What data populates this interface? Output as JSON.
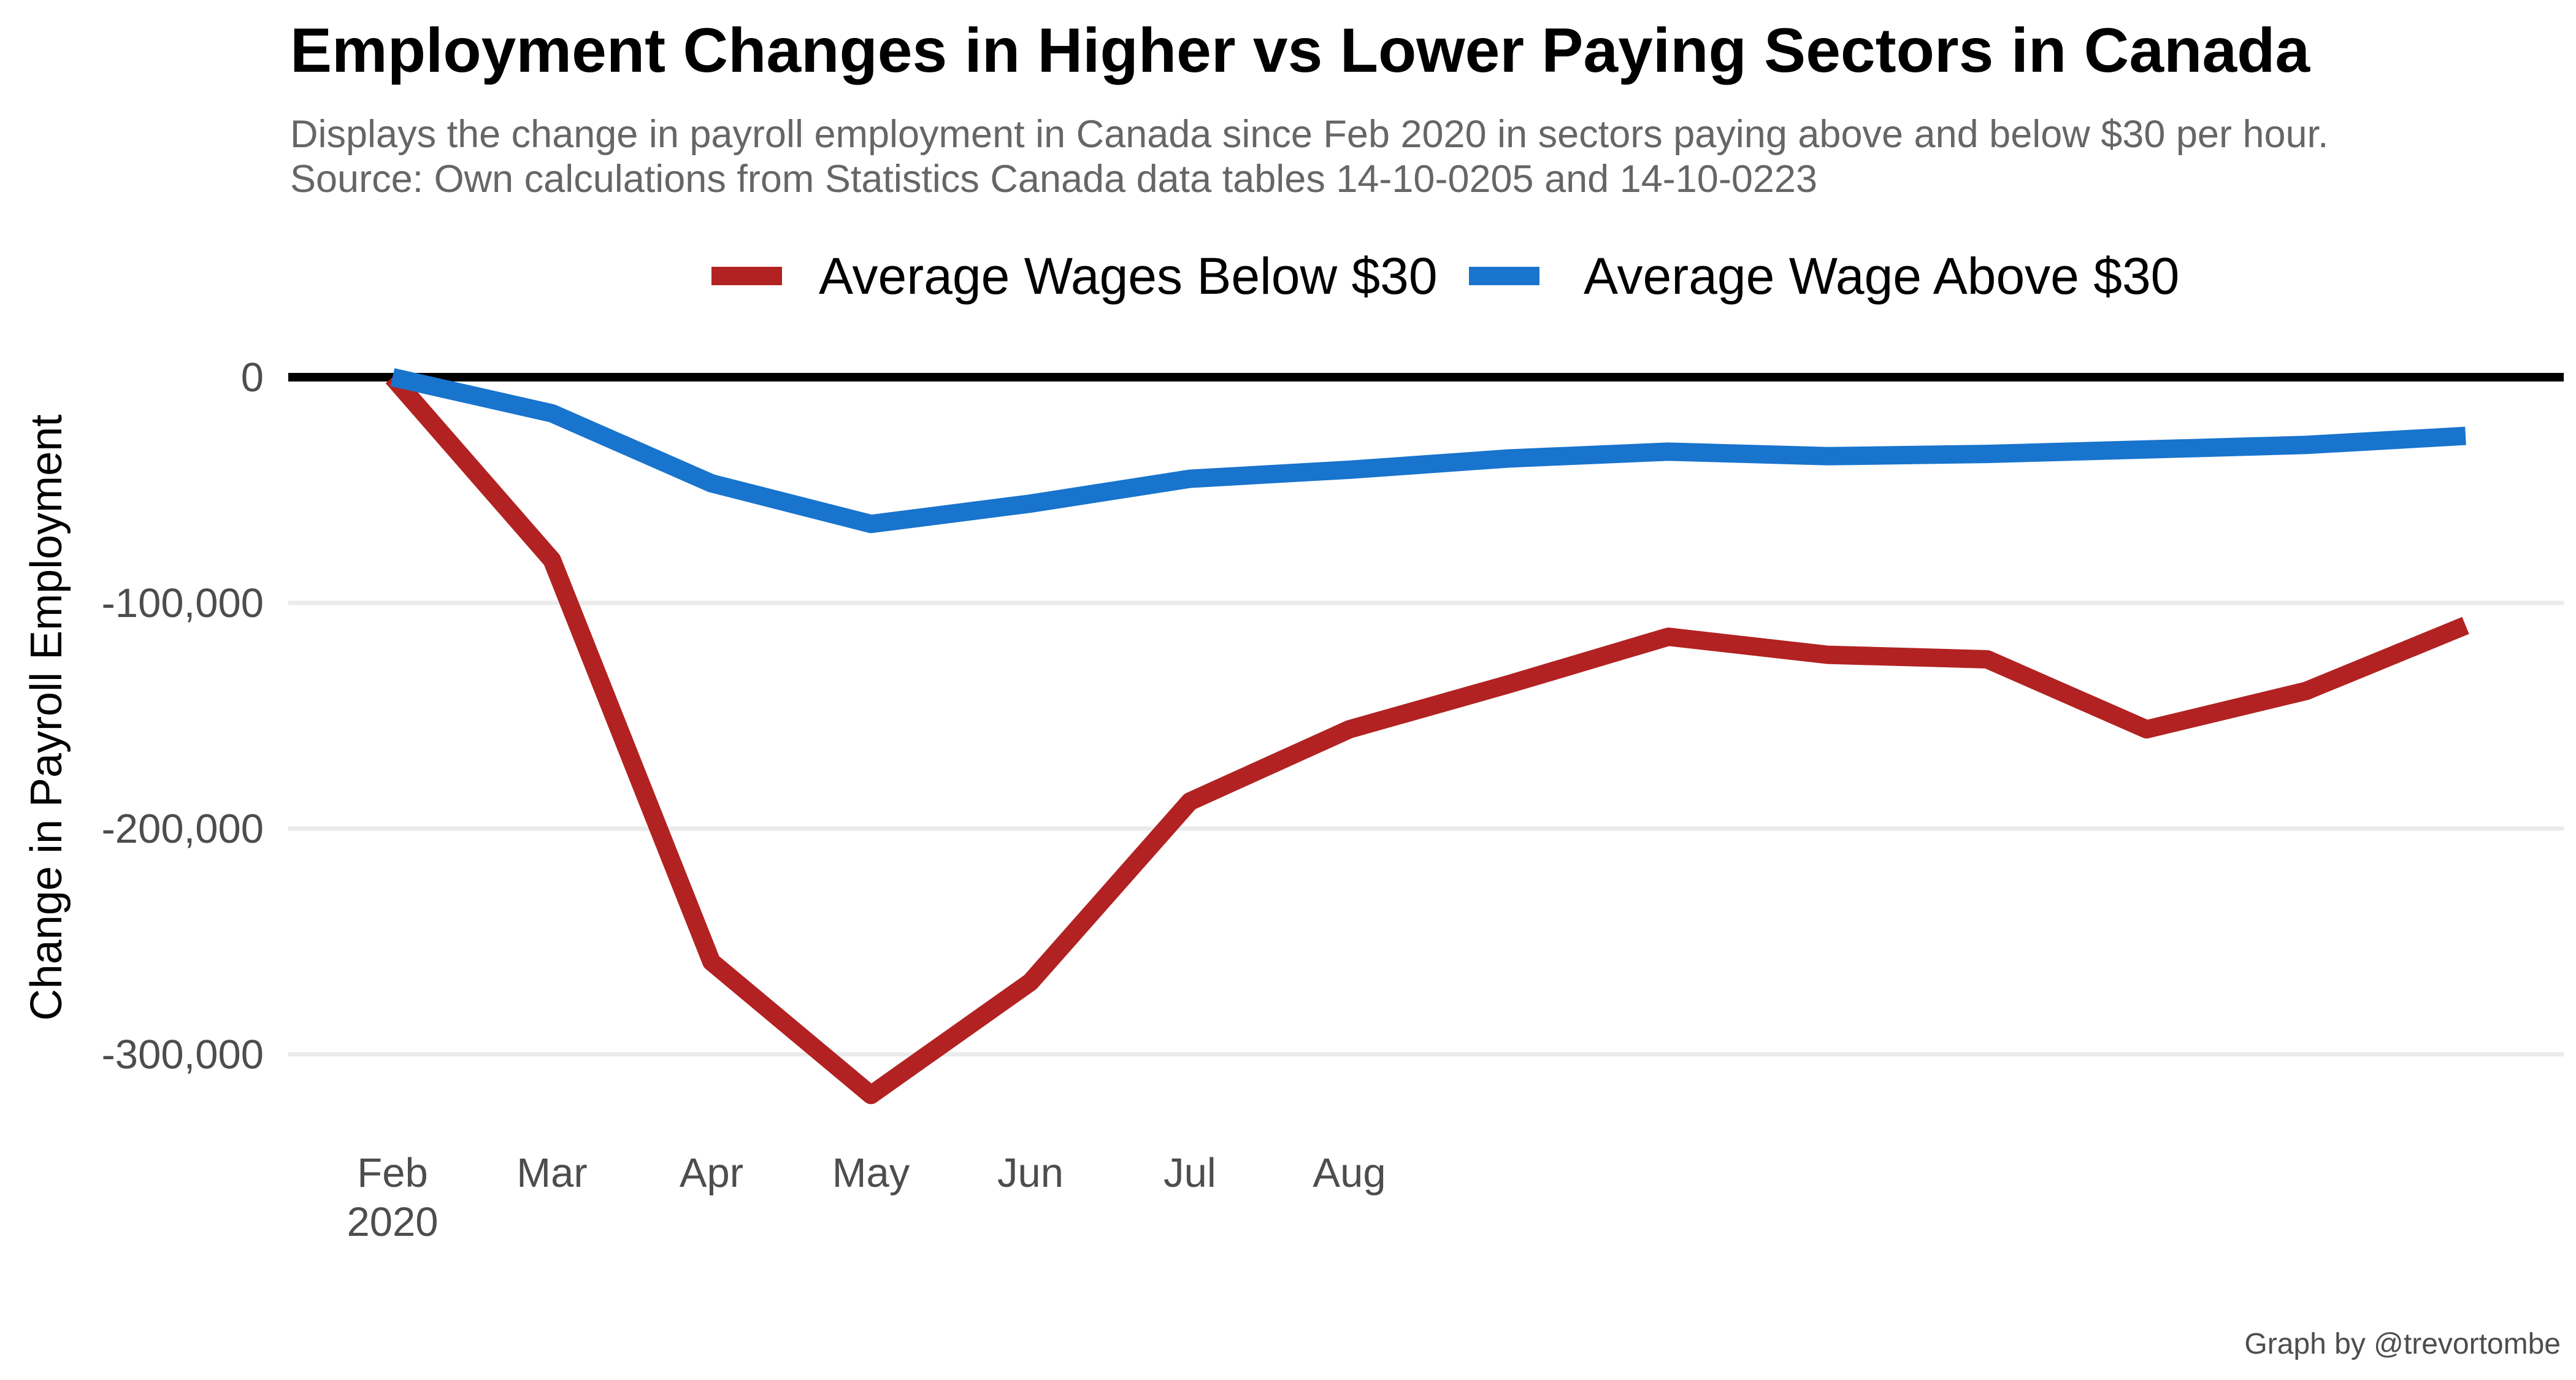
{
  "chart_data": {
    "type": "line",
    "title": "Employment Changes in Higher vs Lower Paying Sectors in Canada",
    "subtitle": [
      "Displays the change in payroll employment in Canada since Feb 2020 in sectors paying above and below $30 per hour.",
      "Source: Own calculations from Statistics Canada data tables 14-10-0205 and 14-10-0223"
    ],
    "caption": "Graph by @trevortombe",
    "xlabel": "",
    "ylabel": "Change in Payroll Employment",
    "x": [
      "2020-02",
      "2020-03",
      "2020-04",
      "2020-05",
      "2020-06",
      "2020-07",
      "2020-08",
      "2020-09",
      "2020-10",
      "2020-11",
      "2020-12",
      "2021-01",
      "2021-02",
      "2021-03"
    ],
    "x_ticks": [
      {
        "x": "2020-02",
        "label": [
          "Feb",
          "2020"
        ]
      },
      {
        "x": "2020-03",
        "label": [
          "Mar"
        ]
      },
      {
        "x": "2020-04",
        "label": [
          "Apr"
        ]
      },
      {
        "x": "2020-05",
        "label": [
          "May"
        ]
      },
      {
        "x": "2020-06",
        "label": [
          "Jun"
        ]
      },
      {
        "x": "2020-07",
        "label": [
          "Jul"
        ]
      },
      {
        "x": "2020-08",
        "label": [
          "Aug"
        ]
      }
    ],
    "y_ticks": [
      0,
      -100000,
      -200000,
      -300000
    ],
    "y_tick_labels": [
      "0",
      "-100,000",
      "-200,000",
      "-300,000"
    ],
    "ylim": [
      -340000,
      5000
    ],
    "grid": true,
    "legend_position": "top",
    "series": [
      {
        "name": "Average Wages Below $30",
        "color": "#B22222",
        "values": [
          0,
          -81000,
          -259000,
          -318000,
          -268000,
          -188000,
          -156000,
          -136000,
          -115000,
          -123000,
          -125000,
          -156000,
          -139000,
          -110000
        ]
      },
      {
        "name": "Average Wage Above $30",
        "color": "#1874CD",
        "values": [
          0,
          -16000,
          -47000,
          -65000,
          -56000,
          -45000,
          -41000,
          -36000,
          -33000,
          -35000,
          -34000,
          -32000,
          -30000,
          -26000
        ]
      }
    ]
  }
}
